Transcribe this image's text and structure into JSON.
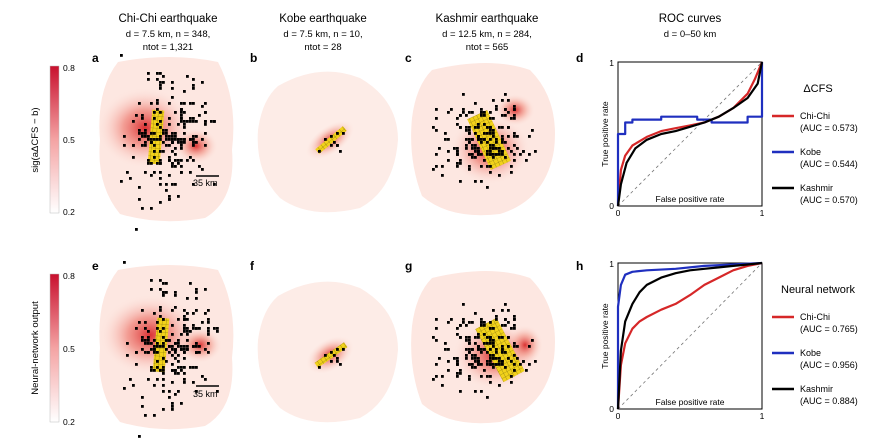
{
  "columns": [
    {
      "title": "Chi-Chi earthquake",
      "line1": "d = 7.5 km, n = 348,",
      "line2": "ntot = 1,321"
    },
    {
      "title": "Kobe earthquake",
      "line1": "d = 7.5 km, n = 10,",
      "line2": "ntot = 28"
    },
    {
      "title": "Kashmir earthquake",
      "line1": "d = 12.5 km, n = 284,",
      "line2": "ntot = 565"
    },
    {
      "title": "ROC curves",
      "line1": "d = 0–50 km",
      "line2": ""
    }
  ],
  "panel_letters": [
    "a",
    "b",
    "c",
    "d",
    "e",
    "f",
    "g",
    "h"
  ],
  "scale_label": "35 km",
  "rows": [
    {
      "colorbar_label": "sig(aΔCFS − b)",
      "colorbar_ticks": [
        "0.8",
        "0.5",
        "0.2"
      ],
      "legend_title": "ΔCFS"
    },
    {
      "colorbar_label": "Neural-network output",
      "colorbar_ticks": [
        "0.8",
        "0.5",
        "0.2"
      ],
      "legend_title": "Neural network"
    }
  ],
  "colors": {
    "chichi": "#d62728",
    "kobe": "#1f2fbf",
    "kashmir": "#000000",
    "heat": "#c8102e",
    "fault": "#f2d21b"
  },
  "chart_data": [
    {
      "type": "line",
      "title": "",
      "xlabel": "False positive rate",
      "ylabel": "True positive rate",
      "xlim": [
        0,
        1
      ],
      "ylim": [
        0,
        1
      ],
      "x_ticks": [
        "0",
        "1"
      ],
      "y_ticks": [
        "0",
        "1"
      ],
      "legend_title": "ΔCFS",
      "series": [
        {
          "name": "Chi-Chi",
          "auc_label": "(AUC = 0.573)",
          "color": "#d62728",
          "x": [
            0,
            0.02,
            0.05,
            0.1,
            0.2,
            0.3,
            0.4,
            0.5,
            0.6,
            0.7,
            0.8,
            0.9,
            0.95,
            1.0
          ],
          "y": [
            0,
            0.25,
            0.35,
            0.42,
            0.48,
            0.52,
            0.54,
            0.56,
            0.58,
            0.62,
            0.68,
            0.78,
            0.88,
            1.0
          ]
        },
        {
          "name": "Kobe",
          "auc_label": "(AUC = 0.544)",
          "color": "#1f2fbf",
          "x": [
            0,
            0.0,
            0.05,
            0.05,
            0.1,
            0.1,
            0.3,
            0.3,
            0.55,
            0.55,
            0.65,
            0.65,
            0.9,
            0.9,
            1.0,
            1.0
          ],
          "y": [
            0,
            0.5,
            0.5,
            0.58,
            0.58,
            0.6,
            0.6,
            0.62,
            0.62,
            0.6,
            0.6,
            0.58,
            0.58,
            0.62,
            0.62,
            1.0
          ]
        },
        {
          "name": "Kashmir",
          "auc_label": "(AUC = 0.570)",
          "color": "#000000",
          "x": [
            0,
            0.02,
            0.06,
            0.12,
            0.2,
            0.3,
            0.4,
            0.5,
            0.6,
            0.7,
            0.8,
            0.9,
            0.97,
            1.0
          ],
          "y": [
            0,
            0.15,
            0.3,
            0.4,
            0.46,
            0.5,
            0.52,
            0.55,
            0.58,
            0.62,
            0.68,
            0.75,
            0.85,
            1.0
          ]
        }
      ]
    },
    {
      "type": "line",
      "title": "",
      "xlabel": "False positive rate",
      "ylabel": "True positive rate",
      "xlim": [
        0,
        1
      ],
      "ylim": [
        0,
        1
      ],
      "x_ticks": [
        "0",
        "1"
      ],
      "y_ticks": [
        "0",
        "1"
      ],
      "legend_title": "Neural network",
      "series": [
        {
          "name": "Chi-Chi",
          "auc_label": "(AUC = 0.765)",
          "color": "#d62728",
          "x": [
            0,
            0.02,
            0.05,
            0.1,
            0.15,
            0.2,
            0.3,
            0.4,
            0.5,
            0.6,
            0.7,
            0.8,
            0.9,
            1.0
          ],
          "y": [
            0,
            0.3,
            0.45,
            0.55,
            0.6,
            0.63,
            0.68,
            0.72,
            0.78,
            0.85,
            0.9,
            0.95,
            0.98,
            1.0
          ]
        },
        {
          "name": "Kobe",
          "auc_label": "(AUC = 0.956)",
          "color": "#1f2fbf",
          "x": [
            0,
            0.0,
            0.02,
            0.05,
            0.1,
            0.2,
            0.4,
            0.6,
            0.8,
            1.0
          ],
          "y": [
            0,
            0.7,
            0.85,
            0.92,
            0.94,
            0.95,
            0.96,
            0.98,
            0.99,
            1.0
          ]
        },
        {
          "name": "Kashmir",
          "auc_label": "(AUC = 0.884)",
          "color": "#000000",
          "x": [
            0,
            0.02,
            0.05,
            0.1,
            0.15,
            0.2,
            0.3,
            0.4,
            0.5,
            0.6,
            0.7,
            0.8,
            0.9,
            1.0
          ],
          "y": [
            0,
            0.4,
            0.6,
            0.72,
            0.8,
            0.85,
            0.9,
            0.93,
            0.95,
            0.96,
            0.97,
            0.98,
            0.99,
            1.0
          ]
        }
      ]
    }
  ]
}
